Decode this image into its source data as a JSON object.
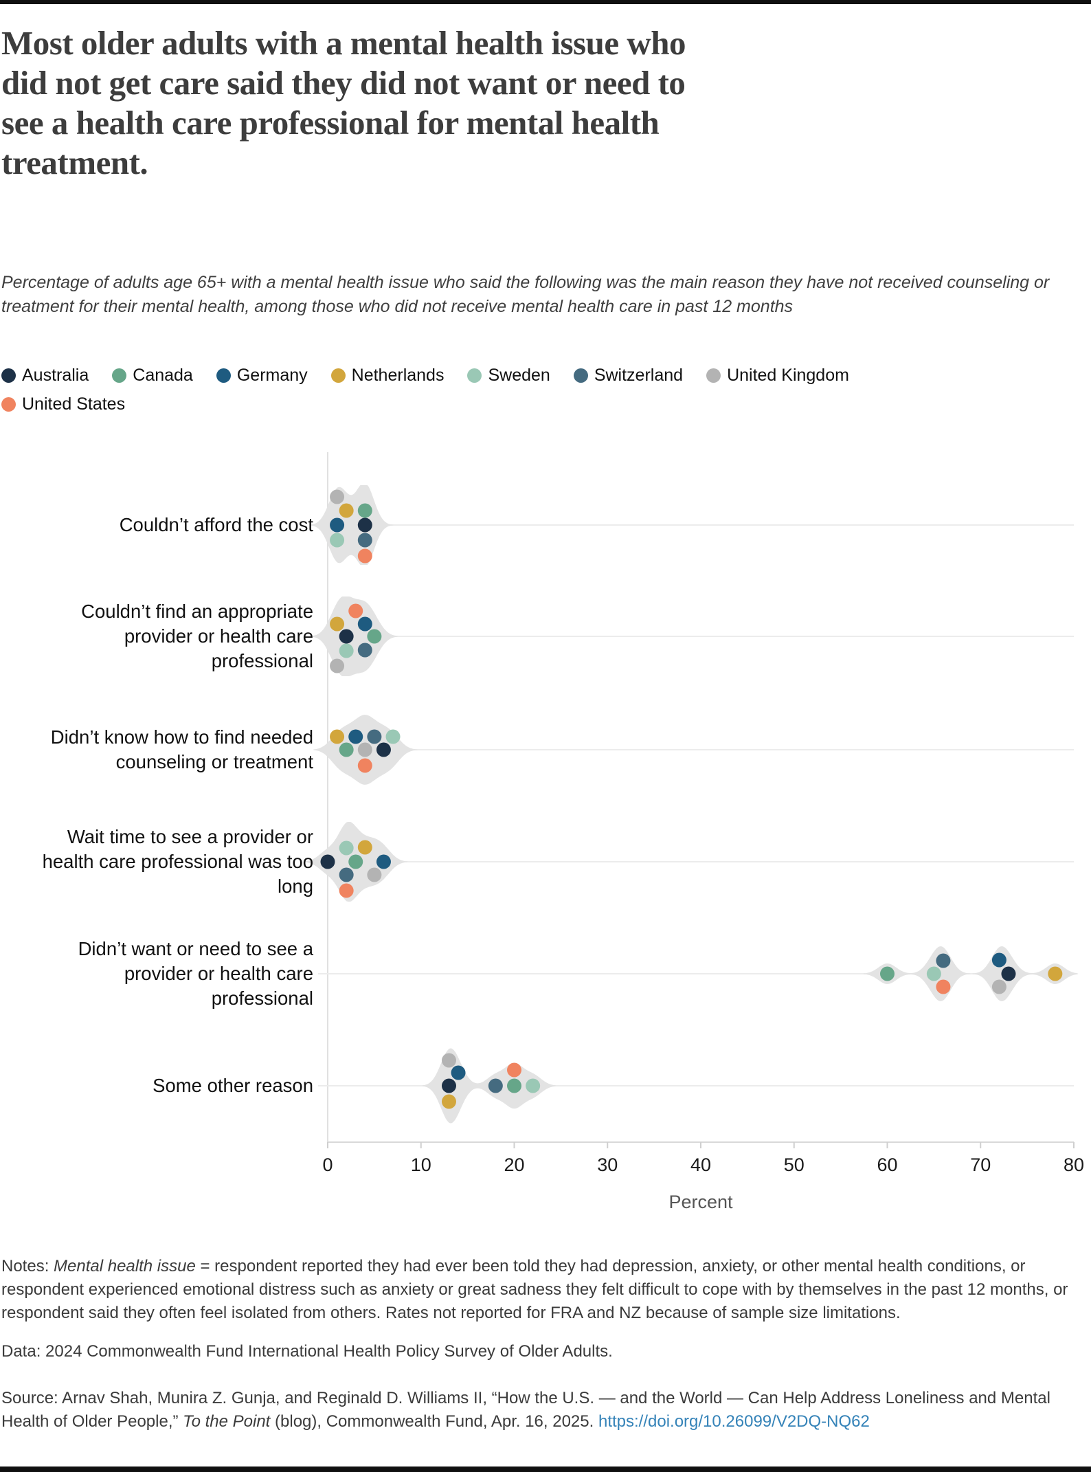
{
  "header": {
    "title": "Most older adults with a mental health issue who\ndid not get care said they did not want or need to\nsee a health care professional for mental health\ntreatment.",
    "subtitle": "Percentage of adults age 65+ with a mental health issue who said the following was the main reason they have not received counseling or treatment for their mental health, among those who did not receive mental health care in past 12 months"
  },
  "legend": [
    {
      "label": "Australia",
      "color": "#1d3147"
    },
    {
      "label": "Canada",
      "color": "#66a689"
    },
    {
      "label": "Germany",
      "color": "#1e5b80"
    },
    {
      "label": "Netherlands",
      "color": "#d2a63c"
    },
    {
      "label": "Sweden",
      "color": "#9ac8b5"
    },
    {
      "label": "Switzerland",
      "color": "#456b80"
    },
    {
      "label": "United Kingdom",
      "color": "#b3b3b3"
    },
    {
      "label": "United States",
      "color": "#f0835f"
    }
  ],
  "chart_data": {
    "type": "scatter",
    "variant": "beeswarm-violin",
    "title": "",
    "xlabel": "Percent",
    "ylabel": "",
    "xlim": [
      0,
      80
    ],
    "x_ticks": [
      0,
      10,
      20,
      30,
      40,
      50,
      60,
      70,
      80
    ],
    "grid": "one horizontal line per category",
    "legend_position": "top",
    "violin_color": "#e3e3e3",
    "rows": [
      {
        "label": "Couldn’t afford the cost",
        "points": [
          {
            "country": "United Kingdom",
            "value": 1,
            "dy": -41
          },
          {
            "country": "Germany",
            "value": 1,
            "dy": 0
          },
          {
            "country": "Sweden",
            "value": 1,
            "dy": 22
          },
          {
            "country": "Netherlands",
            "value": 2,
            "dy": -21
          },
          {
            "country": "Canada",
            "value": 4,
            "dy": -21
          },
          {
            "country": "Australia",
            "value": 4,
            "dy": 0
          },
          {
            "country": "Switzerland",
            "value": 4,
            "dy": 22
          },
          {
            "country": "United States",
            "value": 4,
            "dy": 45
          }
        ]
      },
      {
        "label": "Couldn’t find an appropriate\nprovider or health care\nprofessional",
        "points": [
          {
            "country": "United Kingdom",
            "value": 1,
            "dy": 43
          },
          {
            "country": "Netherlands",
            "value": 1,
            "dy": -18
          },
          {
            "country": "Germany",
            "value": 4,
            "dy": -18
          },
          {
            "country": "United States",
            "value": 3,
            "dy": -37
          },
          {
            "country": "Australia",
            "value": 2,
            "dy": 0
          },
          {
            "country": "Canada",
            "value": 5,
            "dy": 0
          },
          {
            "country": "Sweden",
            "value": 2,
            "dy": 21
          },
          {
            "country": "Switzerland",
            "value": 4,
            "dy": 20
          }
        ]
      },
      {
        "label": "Didn’t know how to find needed\ncounseling or treatment",
        "points": [
          {
            "country": "Netherlands",
            "value": 1,
            "dy": -19
          },
          {
            "country": "Germany",
            "value": 3,
            "dy": -19
          },
          {
            "country": "Switzerland",
            "value": 5,
            "dy": -19
          },
          {
            "country": "Sweden",
            "value": 7,
            "dy": -19
          },
          {
            "country": "Canada",
            "value": 2,
            "dy": 0
          },
          {
            "country": "United Kingdom",
            "value": 4,
            "dy": 0
          },
          {
            "country": "Australia",
            "value": 6,
            "dy": 0
          },
          {
            "country": "United States",
            "value": 4,
            "dy": 23
          }
        ]
      },
      {
        "label": "Wait time to see a provider or\nhealth care professional was too\nlong",
        "points": [
          {
            "country": "Australia",
            "value": 0,
            "dy": 0
          },
          {
            "country": "Sweden",
            "value": 2,
            "dy": -20
          },
          {
            "country": "Netherlands",
            "value": 4,
            "dy": -21
          },
          {
            "country": "Canada",
            "value": 3,
            "dy": 0
          },
          {
            "country": "Germany",
            "value": 6,
            "dy": 0
          },
          {
            "country": "Switzerland",
            "value": 2,
            "dy": 19
          },
          {
            "country": "United Kingdom",
            "value": 5,
            "dy": 19
          },
          {
            "country": "United States",
            "value": 2,
            "dy": 42
          }
        ]
      },
      {
        "label": "Didn’t want or need to see a\nprovider or health care\nprofessional",
        "points": [
          {
            "country": "Canada",
            "value": 60,
            "dy": 0
          },
          {
            "country": "Sweden",
            "value": 65,
            "dy": 0
          },
          {
            "country": "Switzerland",
            "value": 66,
            "dy": -19
          },
          {
            "country": "United States",
            "value": 66,
            "dy": 19
          },
          {
            "country": "United Kingdom",
            "value": 72,
            "dy": 19
          },
          {
            "country": "Germany",
            "value": 72,
            "dy": -20
          },
          {
            "country": "Australia",
            "value": 73,
            "dy": 0
          },
          {
            "country": "Netherlands",
            "value": 78,
            "dy": 0
          }
        ]
      },
      {
        "label": "Some other reason",
        "points": [
          {
            "country": "United Kingdom",
            "value": 13,
            "dy": -37
          },
          {
            "country": "Germany",
            "value": 14,
            "dy": -19
          },
          {
            "country": "Australia",
            "value": 13,
            "dy": 0
          },
          {
            "country": "Netherlands",
            "value": 13,
            "dy": 23
          },
          {
            "country": "Switzerland",
            "value": 18,
            "dy": 0
          },
          {
            "country": "Sweden",
            "value": 22,
            "dy": 0
          },
          {
            "country": "Canada",
            "value": 20,
            "dy": 0
          },
          {
            "country": "United States",
            "value": 20,
            "dy": -23
          }
        ]
      }
    ]
  },
  "footer": {
    "notes_prefix": "Notes: ",
    "notes_italic": "Mental health issue",
    "notes_rest": " = respondent reported they had ever been told they had depression, anxiety, or other mental health conditions, or respondent experienced emotional distress such as anxiety or great sadness they felt difficult to cope with by themselves in the past 12 months, or respondent said they often feel isolated from others. Rates not reported for FRA and NZ because of sample size limitations.",
    "data_line": "Data: 2024 Commonwealth Fund International Health Policy Survey of Older Adults.",
    "source_prefix": "Source: Arnav Shah, Munira Z. Gunja, and Reginald D. Williams II, “How the U.S. — and the World — Can Help Address Loneliness and Mental Health of Older People,” ",
    "source_italic": "To the Point",
    "source_rest": " (blog), Commonwealth Fund, Apr. 16, 2025. ",
    "source_link": "https://doi.org/10.26099/V2DQ-NQ62"
  }
}
